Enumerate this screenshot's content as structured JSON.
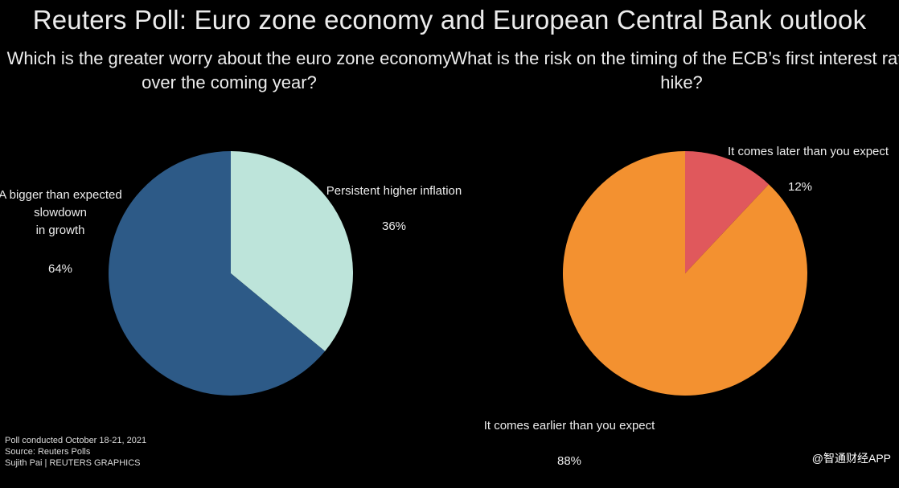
{
  "title": "Reuters Poll: Euro zone economy and European Central Bank outlook",
  "chart_data": [
    {
      "type": "pie",
      "title": "Which is the greater worry about the euro zone economy over the coming year?",
      "slices": [
        {
          "label": "Persistent higher inflation",
          "value": 36,
          "value_text": "36%",
          "color": "#bde4da"
        },
        {
          "label": "A bigger than expected\nslowdown\nin growth",
          "value": 64,
          "value_text": "64%",
          "color": "#2d5a87"
        }
      ]
    },
    {
      "type": "pie",
      "title": "What is the risk on the timing of the ECB’s first interest rate hike?",
      "slices": [
        {
          "label": "It comes later than you expect",
          "value": 12,
          "value_text": "12%",
          "color": "#e0585c"
        },
        {
          "label": "It comes earlier than you expect",
          "value": 88,
          "value_text": "88%",
          "color": "#f39130"
        }
      ]
    }
  ],
  "footer": {
    "line1": "Poll conducted October 18-21, 2021",
    "line2": "Source: Reuters Polls",
    "line3": "Sujith Pai | REUTERS GRAPHICS"
  },
  "watermark": "@智通财经APP"
}
